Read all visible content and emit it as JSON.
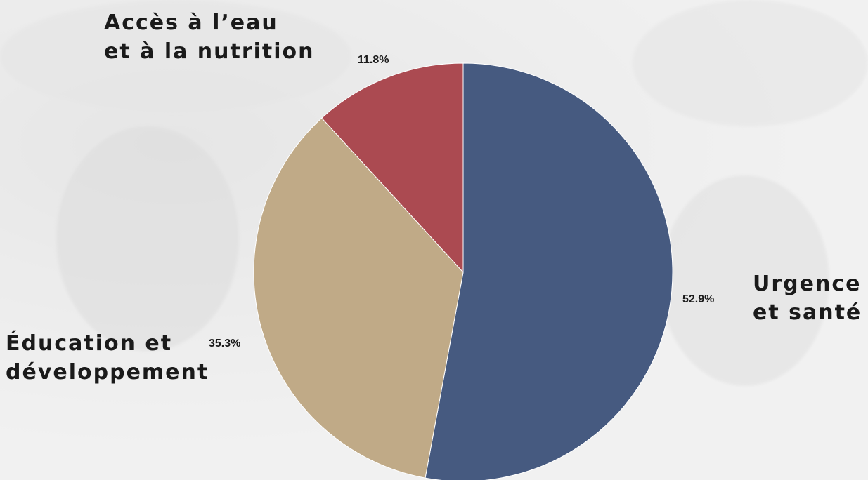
{
  "chart_data": {
    "type": "pie",
    "slices": [
      {
        "label_lines": [
          "Urgence",
          "et santé"
        ],
        "value": 52.9,
        "value_label": "52.9%",
        "color": "#465a80"
      },
      {
        "label_lines": [
          "Éducation et",
          "développement"
        ],
        "value": 35.3,
        "value_label": "35.3%",
        "color": "#c0aa87"
      },
      {
        "label_lines": [
          "Accès à l’eau",
          "et à la nutrition"
        ],
        "value": 11.8,
        "value_label": "11.8%",
        "color": "#ab4a51"
      }
    ],
    "start": "12 o'clock",
    "direction": "clockwise",
    "legend": "none"
  }
}
